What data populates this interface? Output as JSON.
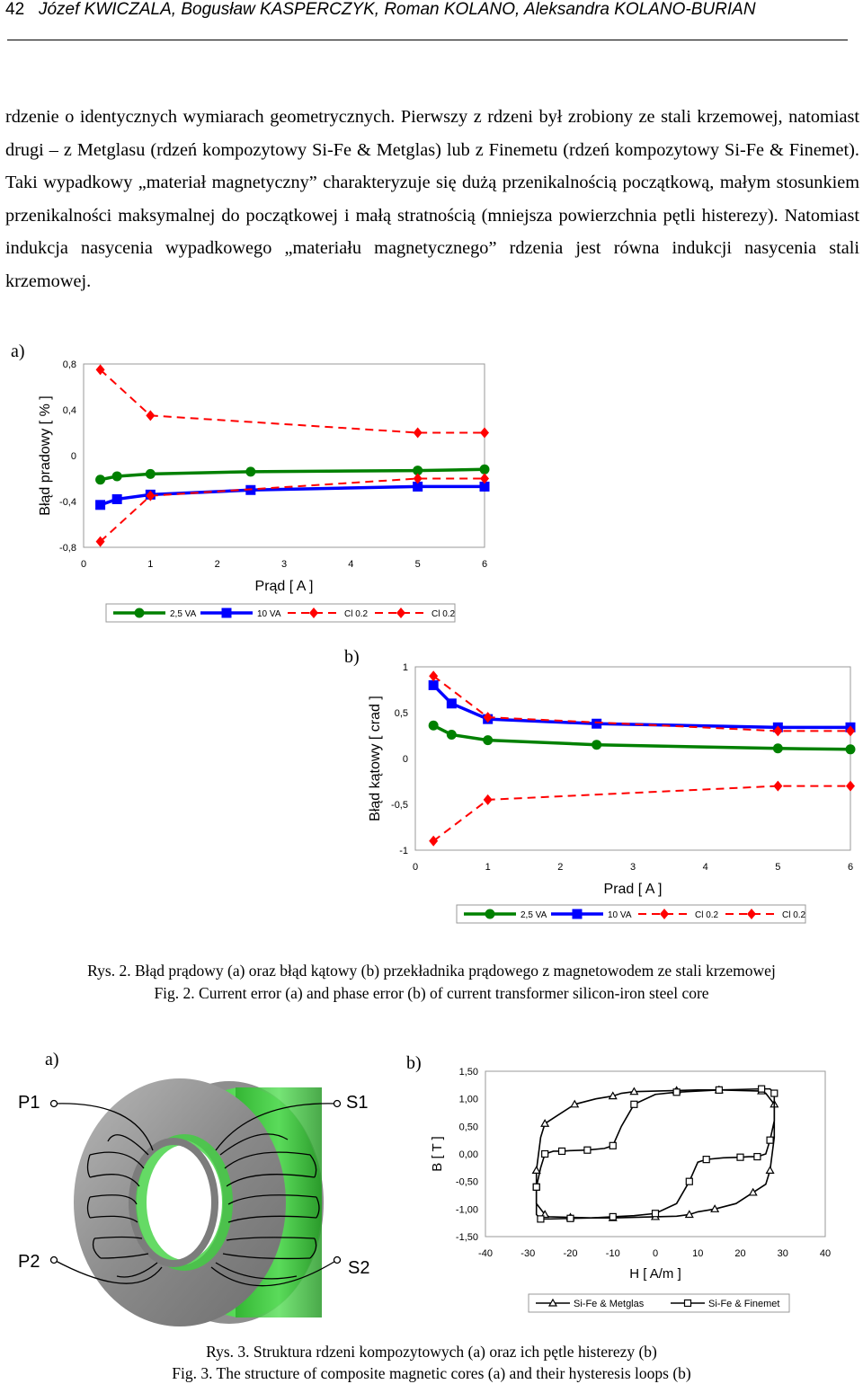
{
  "header": {
    "page_number": "42",
    "authors": "Józef KWICZALA, Bogusław KASPERCZYK, Roman KOLANO, Aleksandra KOLANO-BURIAN"
  },
  "paragraph": "rdzenie o identycznych wymiarach geometrycznych. Pierwszy z rdzeni był zrobiony ze stali krzemowej, natomiast drugi – z Metglasu (rdzeń kompozytowy Si-Fe & Metglas) lub z Finemetu (rdzeń kompozytowy Si-Fe & Finemet). Taki wypadkowy „materiał magnetyczny” charakteryzuje się dużą przenikalnością początkową, małym stosunkiem przenikalności maksymalnej do początkowej i małą stratnością (mniejsza powierzchnia pętli histerezy). Natomiast indukcja nasycenia wypadkowego „materiału magnetycznego” rdzenia jest równa indukcji nasycenia stali krzemowej.",
  "figure2": {
    "panel_a_label": "a)",
    "panel_b_label": "b)",
    "caption_pl": "Rys. 2. Błąd prądowy (a) oraz błąd kątowy (b) przekładnika prądowego z magnetowodem ze stali krzemowej",
    "caption_en": "Fig. 2. Current error (a) and phase error (b) of current transformer silicon-iron steel core"
  },
  "figure3": {
    "panel_a_label": "a)",
    "panel_b_label": "b)",
    "winding_labels": [
      "P1",
      "S1",
      "P2",
      "S2"
    ],
    "caption_pl": "Rys. 3. Struktura rdzeni kompozytowych (a) oraz ich pętle histerezy (b)",
    "caption_en": "Fig. 3. The structure of composite magnetic cores (a) and their hysteresis loops (b)"
  },
  "chart_data": [
    {
      "id": "fig2a",
      "type": "line",
      "xlabel": "Prąd  [ A ]",
      "ylabel": "Błąd pradowy  [ % ]",
      "xlim": [
        0,
        6
      ],
      "ylim": [
        -0.8,
        0.8
      ],
      "xticks": [
        "0",
        "1",
        "2",
        "3",
        "4",
        "5",
        "6"
      ],
      "yticks": [
        "0,8",
        "0,4",
        "0",
        "-0,4",
        "-0,8"
      ],
      "legend_position": "bottom",
      "series": [
        {
          "name": "2,5 VA",
          "color": "#008000",
          "marker": "circle",
          "dash": false,
          "x": [
            0.25,
            0.5,
            1.0,
            2.5,
            5.0,
            6.0
          ],
          "y": [
            -0.21,
            -0.18,
            -0.16,
            -0.14,
            -0.13,
            -0.12
          ]
        },
        {
          "name": "10 VA",
          "color": "#0000ff",
          "marker": "square",
          "dash": false,
          "x": [
            0.25,
            0.5,
            1.0,
            2.5,
            5.0,
            6.0
          ],
          "y": [
            -0.43,
            -0.38,
            -0.34,
            -0.3,
            -0.27,
            -0.27
          ]
        },
        {
          "name": "Cl 0.2",
          "color": "#ff0000",
          "marker": "diamond",
          "dash": true,
          "x": [
            0.25,
            1.0,
            5.0,
            6.0
          ],
          "y": [
            0.75,
            0.35,
            0.2,
            0.2
          ]
        },
        {
          "name": "Cl 0.2",
          "color": "#ff0000",
          "marker": "diamond",
          "dash": true,
          "x": [
            0.25,
            1.0,
            5.0,
            6.0
          ],
          "y": [
            -0.75,
            -0.35,
            -0.2,
            -0.2
          ]
        }
      ]
    },
    {
      "id": "fig2b",
      "type": "line",
      "xlabel": "Prad  [ A ]",
      "ylabel": "Błąd kątowy  [ crad ]",
      "xlim": [
        0,
        6
      ],
      "ylim": [
        -1,
        1
      ],
      "xticks": [
        "0",
        "1",
        "2",
        "3",
        "4",
        "5",
        "6"
      ],
      "yticks": [
        "1",
        "0,5",
        "0",
        "-0,5",
        "-1"
      ],
      "legend_position": "bottom",
      "series": [
        {
          "name": "2,5 VA",
          "color": "#008000",
          "marker": "circle",
          "dash": false,
          "x": [
            0.25,
            0.5,
            1.0,
            2.5,
            5.0,
            6.0
          ],
          "y": [
            0.36,
            0.26,
            0.2,
            0.15,
            0.11,
            0.1
          ]
        },
        {
          "name": "10 VA",
          "color": "#0000ff",
          "marker": "square",
          "dash": false,
          "x": [
            0.25,
            0.5,
            1.0,
            2.5,
            5.0,
            6.0
          ],
          "y": [
            0.8,
            0.6,
            0.43,
            0.38,
            0.34,
            0.34
          ]
        },
        {
          "name": "Cl 0.2",
          "color": "#ff0000",
          "marker": "diamond",
          "dash": true,
          "x": [
            0.25,
            1.0,
            5.0,
            6.0
          ],
          "y": [
            0.9,
            0.45,
            0.3,
            0.3
          ]
        },
        {
          "name": "Cl 0.2",
          "color": "#ff0000",
          "marker": "diamond",
          "dash": true,
          "x": [
            0.25,
            1.0,
            5.0,
            6.0
          ],
          "y": [
            -0.9,
            -0.45,
            -0.3,
            -0.3
          ]
        }
      ]
    },
    {
      "id": "fig3b",
      "type": "line",
      "xlabel": "H  [ A/m ]",
      "ylabel": "B  [ T ]",
      "xlim": [
        -40,
        40
      ],
      "ylim": [
        -1.5,
        1.5
      ],
      "xticks": [
        "-40",
        "-30",
        "-20",
        "-10",
        "0",
        "10",
        "20",
        "30",
        "40"
      ],
      "yticks": [
        "1,50",
        "1,00",
        "0,50",
        "0,00",
        "-0,50",
        "-1,00",
        "-1,50"
      ],
      "legend_position": "bottom",
      "series": [
        {
          "name": "Si-Fe & Metglas",
          "color": "#000000",
          "marker": "triangle",
          "upper_x": [
            -28,
            -27,
            -26,
            -23,
            -19,
            -14,
            -10,
            -8,
            -5,
            0,
            5,
            10,
            15,
            20,
            25,
            26,
            28
          ],
          "upper_y": [
            -0.3,
            0.3,
            0.55,
            0.7,
            0.9,
            1.0,
            1.05,
            1.1,
            1.13,
            1.14,
            1.15,
            1.16,
            1.16,
            1.15,
            1.14,
            1.1,
            0.9
          ]
        },
        {
          "name": "Si-Fe & Finemet",
          "color": "#000000",
          "marker": "square",
          "upper_x": [
            -28,
            -27,
            -26,
            -24,
            -22,
            -20,
            -16,
            -12,
            -10,
            -8,
            -5,
            0,
            5,
            10,
            15,
            20,
            25,
            27,
            28
          ],
          "upper_y": [
            -0.6,
            -0.25,
            0.0,
            0.05,
            0.05,
            0.06,
            0.07,
            0.1,
            0.15,
            0.5,
            0.9,
            1.08,
            1.12,
            1.14,
            1.16,
            1.17,
            1.18,
            1.18,
            1.1
          ]
        }
      ]
    }
  ]
}
